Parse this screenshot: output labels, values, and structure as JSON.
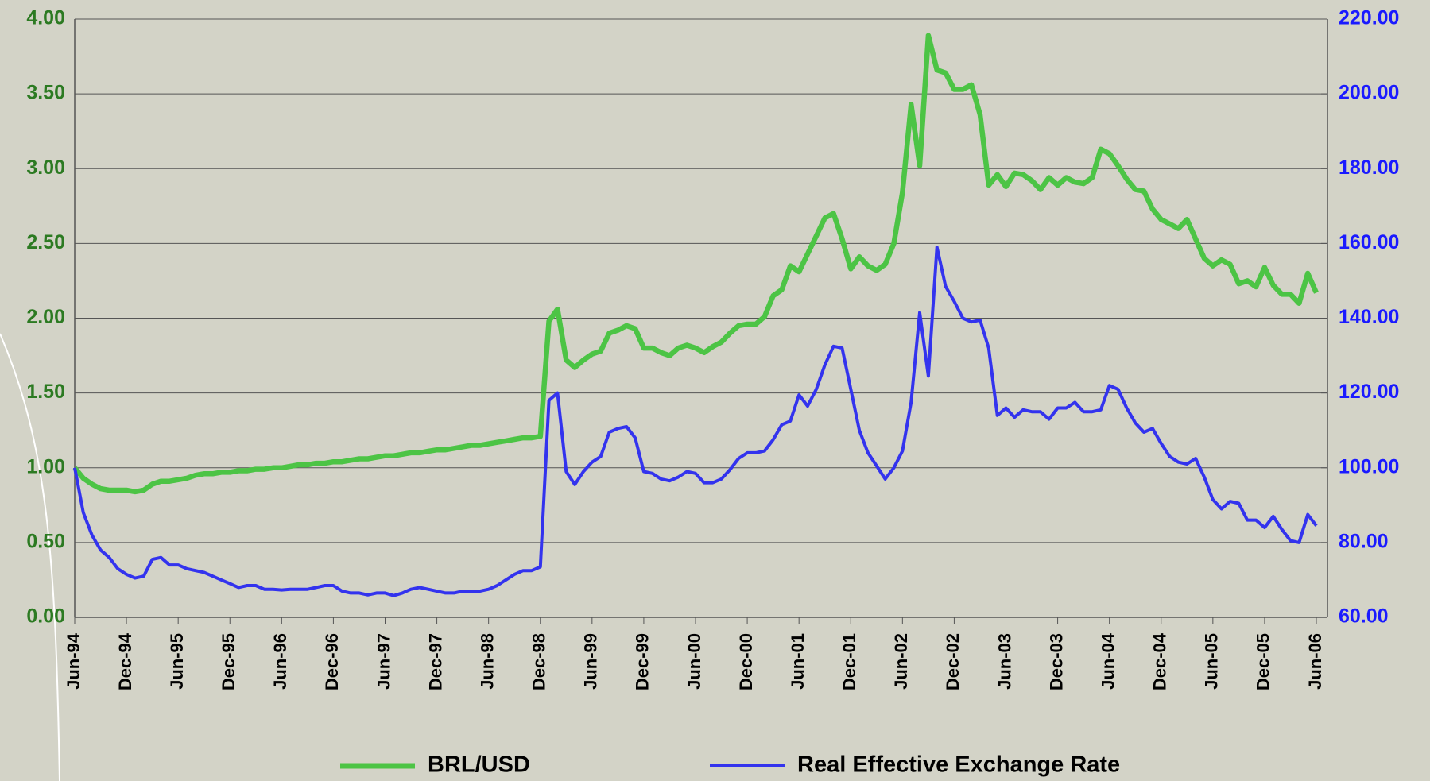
{
  "chart_data": {
    "type": "line",
    "categories": [
      "Jun-94",
      null,
      null,
      null,
      null,
      null,
      "Dec-94",
      null,
      null,
      null,
      null,
      null,
      "Jun-95",
      null,
      null,
      null,
      null,
      null,
      "Dec-95",
      null,
      null,
      null,
      null,
      null,
      "Jun-96",
      null,
      null,
      null,
      null,
      null,
      "Dec-96",
      null,
      null,
      null,
      null,
      null,
      "Jun-97",
      null,
      null,
      null,
      null,
      null,
      "Dec-97",
      null,
      null,
      null,
      null,
      null,
      "Jun-98",
      null,
      null,
      null,
      null,
      null,
      "Dec-98",
      null,
      null,
      null,
      null,
      null,
      "Jun-99",
      null,
      null,
      null,
      null,
      null,
      "Dec-99",
      null,
      null,
      null,
      null,
      null,
      "Jun-00",
      null,
      null,
      null,
      null,
      null,
      "Dec-00",
      null,
      null,
      null,
      null,
      null,
      "Jun-01",
      null,
      null,
      null,
      null,
      null,
      "Dec-01",
      null,
      null,
      null,
      null,
      null,
      "Jun-02",
      null,
      null,
      null,
      null,
      null,
      "Dec-02",
      null,
      null,
      null,
      null,
      null,
      "Jun-03",
      null,
      null,
      null,
      null,
      null,
      "Dec-03",
      null,
      null,
      null,
      null,
      null,
      "Jun-04",
      null,
      null,
      null,
      null,
      null,
      "Dec-04",
      null,
      null,
      null,
      null,
      null,
      "Jun-05",
      null,
      null,
      null,
      null,
      null,
      "Dec-05",
      null,
      null,
      null,
      null,
      null,
      "Jun-06"
    ],
    "series": [
      {
        "name": "BRL/USD",
        "color": "#4cc445",
        "values": [
          1.0,
          0.93,
          0.89,
          0.86,
          0.85,
          0.85,
          0.85,
          0.84,
          0.85,
          0.89,
          0.91,
          0.91,
          0.92,
          0.93,
          0.95,
          0.96,
          0.96,
          0.97,
          0.97,
          0.98,
          0.98,
          0.99,
          0.99,
          1.0,
          1.0,
          1.01,
          1.02,
          1.02,
          1.03,
          1.03,
          1.04,
          1.04,
          1.05,
          1.06,
          1.06,
          1.07,
          1.08,
          1.08,
          1.09,
          1.1,
          1.1,
          1.11,
          1.12,
          1.12,
          1.13,
          1.14,
          1.15,
          1.15,
          1.16,
          1.17,
          1.18,
          1.19,
          1.2,
          1.2,
          1.21,
          1.98,
          2.06,
          1.72,
          1.67,
          1.72,
          1.76,
          1.78,
          1.9,
          1.92,
          1.95,
          1.93,
          1.8,
          1.8,
          1.77,
          1.75,
          1.8,
          1.82,
          1.8,
          1.77,
          1.81,
          1.84,
          1.9,
          1.95,
          1.96,
          1.96,
          2.01,
          2.15,
          2.19,
          2.35,
          2.31,
          2.43,
          2.55,
          2.67,
          2.7,
          2.53,
          2.33,
          2.41,
          2.35,
          2.32,
          2.36,
          2.5,
          2.84,
          3.43,
          3.02,
          3.89,
          3.66,
          3.64,
          3.53,
          3.53,
          3.56,
          3.36,
          2.89,
          2.96,
          2.88,
          2.97,
          2.96,
          2.92,
          2.86,
          2.94,
          2.89,
          2.94,
          2.91,
          2.9,
          2.94,
          3.13,
          3.1,
          3.02,
          2.93,
          2.86,
          2.85,
          2.73,
          2.66,
          2.63,
          2.6,
          2.66,
          2.53,
          2.4,
          2.35,
          2.39,
          2.36,
          2.23,
          2.25,
          2.21,
          2.34,
          2.22,
          2.16,
          2.16,
          2.1,
          2.3,
          2.17
        ]
      },
      {
        "name": "Real Effective Exchange Rate",
        "color": "#3333ee",
        "axis": "y2",
        "values": [
          100,
          88,
          82,
          78,
          76,
          73,
          71.5,
          70.5,
          71,
          75.5,
          76,
          74,
          74,
          73,
          72.5,
          72,
          71,
          70,
          69,
          68,
          68.5,
          68.5,
          67.5,
          67.5,
          67.3,
          67.5,
          67.5,
          67.5,
          68,
          68.5,
          68.5,
          67,
          66.5,
          66.5,
          66,
          66.5,
          66.5,
          65.8,
          66.5,
          67.5,
          68,
          67.5,
          67,
          66.5,
          66.5,
          67,
          67,
          67,
          67.5,
          68.5,
          70,
          71.5,
          72.5,
          72.5,
          73.5,
          118,
          120,
          99,
          95.5,
          99,
          101.5,
          103,
          109.5,
          110.5,
          111,
          108,
          99,
          98.5,
          97,
          96.5,
          97.5,
          99,
          98.5,
          96,
          96,
          97,
          99.5,
          102.5,
          104,
          104,
          104.5,
          107.5,
          111.5,
          112.5,
          119.5,
          116.5,
          121,
          127.5,
          132.5,
          132,
          121,
          110,
          104,
          100.5,
          97,
          100,
          104.5,
          117.5,
          141.5,
          124.5,
          159,
          148.5,
          144.5,
          140,
          139,
          139.5,
          132,
          114,
          116,
          113.5,
          115.5,
          115,
          115,
          113,
          116,
          116,
          117.5,
          115,
          115,
          115.5,
          122,
          121,
          116,
          112,
          109.5,
          110.5,
          106.5,
          103,
          101.5,
          101,
          102.5,
          97.5,
          91.5,
          89,
          91,
          90.5,
          86,
          86,
          84,
          87,
          83.5,
          80.5,
          80,
          87.5,
          84.5
        ]
      }
    ],
    "ylim": [
      0,
      4
    ],
    "yticks": [
      {
        "value": 0,
        "label": "0.00"
      },
      {
        "value": 0.5,
        "label": "0.50"
      },
      {
        "value": 1,
        "label": "1.00"
      },
      {
        "value": 1.5,
        "label": "1.50"
      },
      {
        "value": 2,
        "label": "2.00"
      },
      {
        "value": 2.5,
        "label": "2.50"
      },
      {
        "value": 3,
        "label": "3.00"
      },
      {
        "value": 3.5,
        "label": "3.50"
      },
      {
        "value": 4,
        "label": "4.00"
      }
    ],
    "y2lim": [
      60,
      220
    ],
    "y2ticks": [
      {
        "value": 60,
        "label": "60.00"
      },
      {
        "value": 80,
        "label": "80.00"
      },
      {
        "value": 100,
        "label": "100.00"
      },
      {
        "value": 120,
        "label": "120.00"
      },
      {
        "value": 140,
        "label": "140.00"
      },
      {
        "value": 160,
        "label": "160.00"
      },
      {
        "value": 180,
        "label": "180.00"
      },
      {
        "value": 200,
        "label": "200.00"
      },
      {
        "value": 220,
        "label": "220.00"
      }
    ],
    "grid": true,
    "legend": "bottom"
  }
}
